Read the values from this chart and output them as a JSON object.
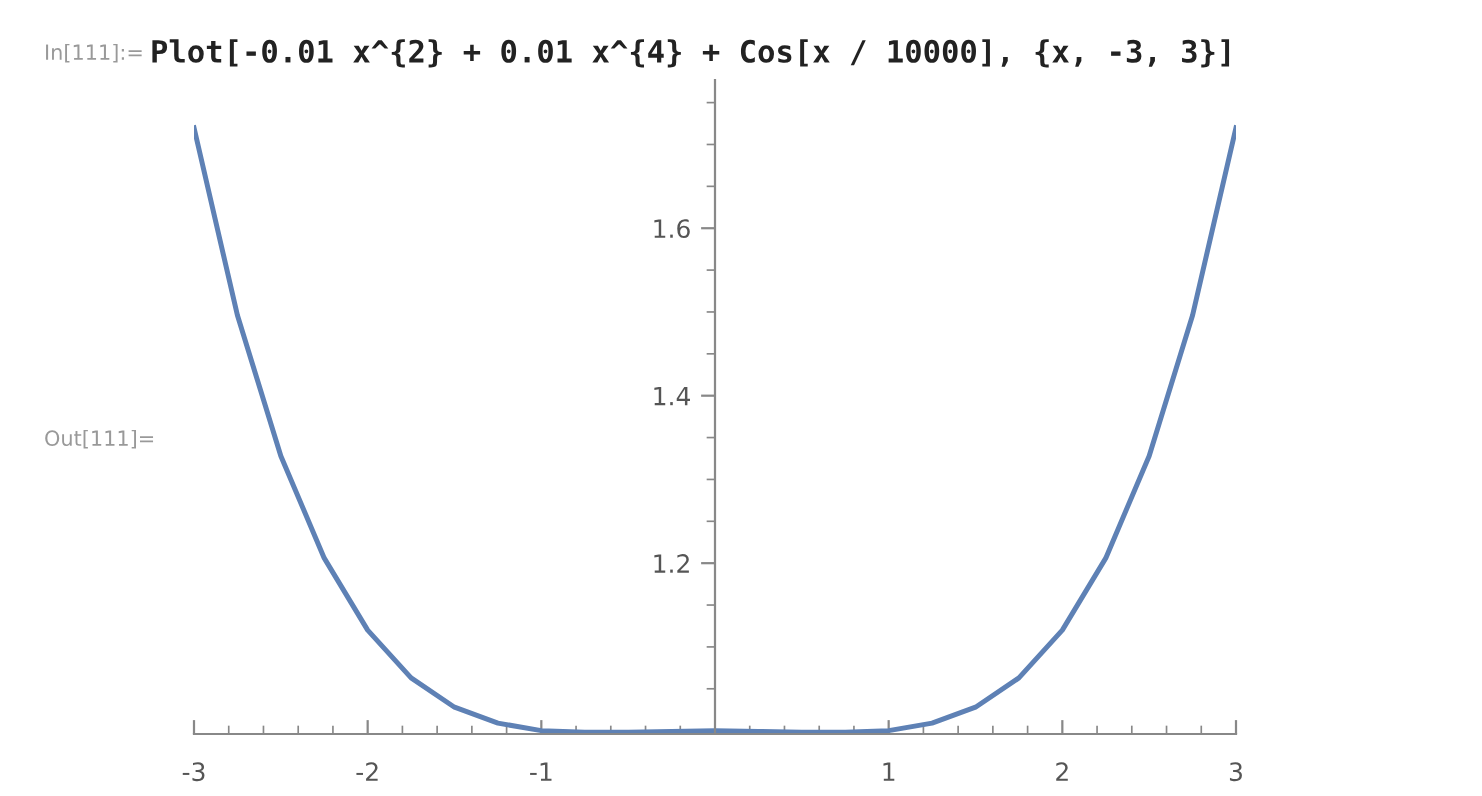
{
  "chart_data": {
    "type": "line",
    "annotations": [
      "In[111]:=",
      "Plot[-0.01 x^{2} + 0.01 x^{4} + Cos[x / 10000], {x, -3, 3}]",
      "Out[111]="
    ],
    "x": [
      -3,
      -2.75,
      -2.5,
      -2.25,
      -2,
      -1.75,
      -1.5,
      -1.25,
      -1,
      -0.75,
      -0.5,
      -0.25,
      0,
      0.25,
      0.5,
      0.75,
      1,
      1.25,
      1.5,
      1.75,
      2,
      2.25,
      2.5,
      2.75,
      3
    ],
    "series": [
      {
        "color": "#5e81b5",
        "values": [
          1.72,
          1.496,
          1.328,
          1.206,
          1.12,
          1.063,
          1.028,
          1.009,
          1.0,
          0.998,
          0.998,
          0.999,
          1.0,
          0.999,
          0.998,
          0.998,
          1.0,
          1.009,
          1.028,
          1.063,
          1.12,
          1.206,
          1.328,
          1.496,
          1.72
        ]
      }
    ],
    "xlim": [
      -3,
      3
    ],
    "ylim": [
      0.996,
      1.777
    ],
    "xticks": [
      -3,
      -2,
      -1,
      1,
      2,
      3
    ],
    "yticks": [
      1.2,
      1.4,
      1.6
    ],
    "grid": false,
    "legend": false,
    "marker": "none",
    "line_style": "solid"
  }
}
